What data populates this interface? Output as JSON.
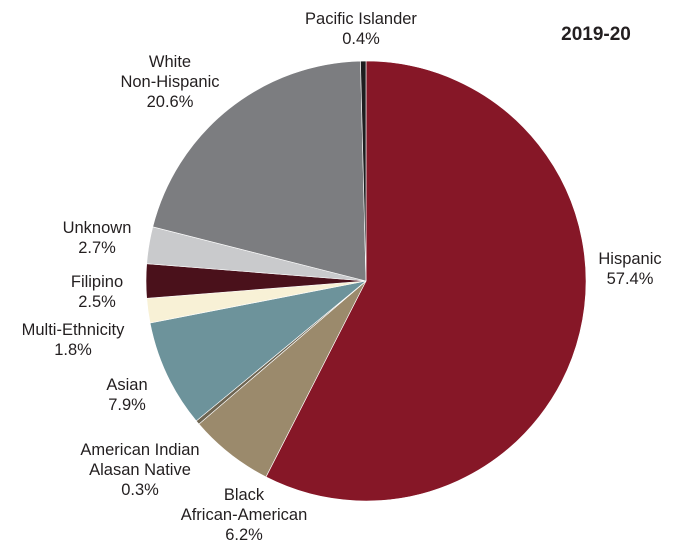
{
  "chart_data": {
    "type": "pie",
    "title": "2019-20",
    "start": "12 o'clock",
    "direction": "clockwise",
    "slices": [
      {
        "lines": [
          "Hispanic",
          "57.4%"
        ],
        "value": 57.4,
        "color": "#861727"
      },
      {
        "lines": [
          "Black",
          "African-American",
          "6.2%"
        ],
        "value": 6.2,
        "color": "#9b8a6c"
      },
      {
        "lines": [
          "American Indian",
          "Alasan Native",
          "0.3%"
        ],
        "value": 0.3,
        "color": "#6e6552"
      },
      {
        "lines": [
          "Asian",
          "7.9%"
        ],
        "value": 7.9,
        "color": "#6d939b"
      },
      {
        "lines": [
          "Multi-Ethnicity",
          "1.8%"
        ],
        "value": 1.8,
        "color": "#f8f1d6"
      },
      {
        "lines": [
          "Filipino",
          "2.5%"
        ],
        "value": 2.5,
        "color": "#4a111b"
      },
      {
        "lines": [
          "Unknown",
          "2.7%"
        ],
        "value": 2.7,
        "color": "#c9cacc"
      },
      {
        "lines": [
          "White",
          "Non-Hispanic",
          "20.6%"
        ],
        "value": 20.6,
        "color": "#7c7d80"
      },
      {
        "lines": [
          "Pacific Islander",
          "0.4%"
        ],
        "value": 0.4,
        "color": "#1d1d1f"
      }
    ]
  }
}
